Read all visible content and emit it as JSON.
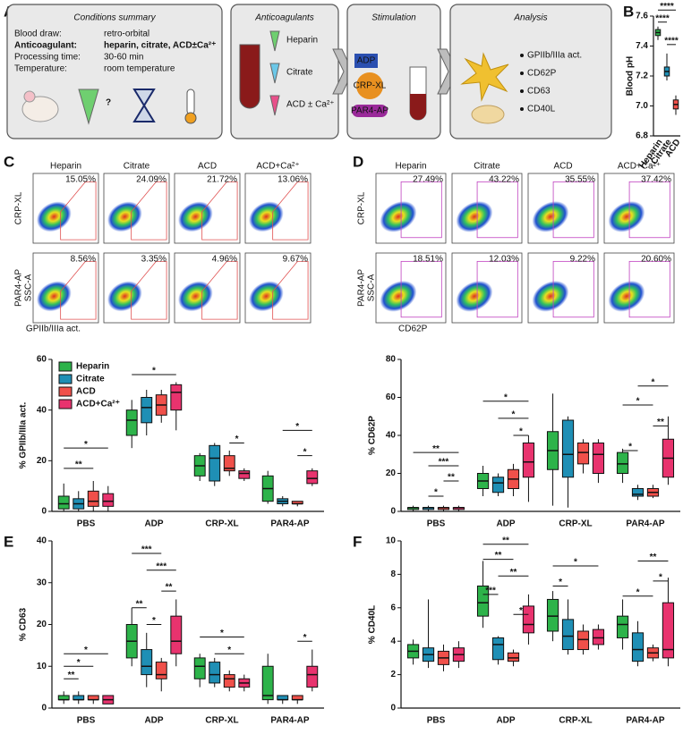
{
  "panel_labels": [
    "A",
    "B",
    "C",
    "D",
    "E",
    "F"
  ],
  "panel_a": {
    "conditions": {
      "title": "Conditions summary",
      "rows": [
        [
          "Blood draw:",
          "retro-orbital"
        ],
        [
          "Anticoagulant:",
          "heparin, citrate, ACD±Ca²⁺"
        ],
        [
          "Processing time:",
          "30-60 min"
        ],
        [
          "Temperature:",
          "room temperature"
        ]
      ]
    },
    "anticoagulants": {
      "title": "Anticoagulants",
      "items": [
        "Heparin",
        "Citrate",
        "ACD ± Ca²⁺"
      ]
    },
    "stimulation": {
      "title": "Stimulation",
      "agonists": [
        "ADP",
        "CRP-XL",
        "PAR4-AP"
      ]
    },
    "analysis": {
      "title": "Analysis",
      "markers": [
        "GPIIb/IIIa act.",
        "CD62P",
        "CD63",
        "CD40L"
      ]
    }
  },
  "flow": [
    {
      "columns": [
        "Heparin",
        "Citrate",
        "ACD",
        "ACD+Ca²⁺"
      ],
      "rows": [
        "CRP-XL",
        "PAR4-AP"
      ],
      "percentages": [
        [
          "15.05%",
          "24.09%",
          "21.72%",
          "13.06%"
        ],
        [
          "8.56%",
          "3.35%",
          "4.96%",
          "9.67%"
        ]
      ],
      "y_axis": "SSC-A",
      "x_axis": "GPIIb/IIIa act."
    },
    {
      "columns": [
        "Heparin",
        "Citrate",
        "ACD",
        "ACD+Ca²⁺"
      ],
      "rows": [
        "CRP-XL",
        "PAR4-AP"
      ],
      "percentages": [
        [
          "27.49%",
          "43.22%",
          "35.55%",
          "37.42%"
        ],
        [
          "18.51%",
          "12.03%",
          "9.22%",
          "20.60%"
        ]
      ],
      "y_axis": "SSC-A",
      "x_axis": "CD62P"
    }
  ],
  "chart_data": [
    {
      "type": "box",
      "y_label": "Blood pH",
      "categories": [
        "Heparin",
        "Citrate",
        "ACD"
      ],
      "colors": [
        "#2db34a",
        "#1f8fb5",
        "#f0504a"
      ],
      "min": [
        7.44,
        7.17,
        6.94
      ],
      "q1": [
        7.47,
        7.2,
        6.98
      ],
      "median": [
        7.49,
        7.23,
        7.01
      ],
      "q3": [
        7.51,
        7.26,
        7.04
      ],
      "max": [
        7.53,
        7.35,
        7.07
      ],
      "ylim": [
        6.8,
        7.6
      ],
      "yticks": [
        6.8,
        {
          "value": 7,
          "label": "7.0"
        },
        7.2,
        7.4,
        7.6
      ],
      "legend": false,
      "annotations": [
        {
          "from": "Citrate",
          "to": "ACD",
          "y": 7.41,
          "label": "****"
        },
        {
          "from": "Heparin",
          "to": "Citrate",
          "y": 7.56,
          "label": "****"
        },
        {
          "from": "Heparin",
          "to": "ACD",
          "y": 7.64,
          "label": "****"
        }
      ]
    },
    {
      "type": "box",
      "y_label": "% GPIIb/IIIa act.",
      "categories": [
        "PBS",
        "ADP",
        "CRP-XL",
        "PAR4-AP"
      ],
      "ylim": [
        0,
        60
      ],
      "yticks": [
        0,
        20,
        40,
        60
      ],
      "legend": true,
      "series": [
        {
          "name": "Heparin",
          "color": "#2db34a",
          "min": [
            0,
            25,
            12,
            3
          ],
          "q1": [
            1,
            30,
            14,
            4
          ],
          "median": [
            3,
            36,
            18,
            9
          ],
          "q3": [
            6,
            40,
            22,
            14
          ],
          "max": [
            11,
            44,
            23,
            16
          ]
        },
        {
          "name": "Citrate",
          "color": "#1f8fb5",
          "min": [
            0,
            30,
            10,
            2
          ],
          "q1": [
            1,
            35,
            12,
            3
          ],
          "median": [
            3,
            41,
            21,
            4
          ],
          "q3": [
            5,
            45,
            26,
            5
          ],
          "max": [
            8,
            48,
            27,
            6
          ]
        },
        {
          "name": "ACD",
          "color": "#f0504a",
          "min": [
            0,
            35,
            14,
            2
          ],
          "q1": [
            2,
            38,
            16,
            3
          ],
          "median": [
            4,
            42,
            17,
            3
          ],
          "q3": [
            8,
            46,
            22,
            4
          ],
          "max": [
            12,
            48,
            24,
            4
          ]
        },
        {
          "name": "ACD+Ca²⁺",
          "color": "#e8336e",
          "min": [
            0,
            32,
            12,
            10
          ],
          "q1": [
            2,
            40,
            13,
            11
          ],
          "median": [
            4,
            47,
            15,
            13
          ],
          "q3": [
            7,
            50,
            16,
            16
          ],
          "max": [
            10,
            51,
            17,
            17
          ]
        }
      ],
      "annotations": [
        {
          "category": "PBS",
          "from": "Heparin",
          "to": "ACD",
          "y": 17,
          "label": "**"
        },
        {
          "category": "PBS",
          "from": "Heparin",
          "to": "ACD+Ca²⁺",
          "y": 25,
          "label": "*"
        },
        {
          "category": "ADP",
          "from": "Heparin",
          "to": "ACD+Ca²⁺",
          "y": 54,
          "label": "*"
        },
        {
          "category": "CRP-XL",
          "from": "ACD",
          "to": "ACD+Ca²⁺",
          "y": 27,
          "label": "*"
        },
        {
          "category": "PAR4-AP",
          "from": "ACD",
          "to": "ACD+Ca²⁺",
          "y": 22,
          "label": "*"
        },
        {
          "category": "PAR4-AP",
          "from": "Citrate",
          "to": "ACD+Ca²⁺",
          "y": 32,
          "label": "*"
        }
      ]
    },
    {
      "type": "box",
      "y_label": "% CD62P",
      "categories": [
        "PBS",
        "ADP",
        "CRP-XL",
        "PAR4-AP"
      ],
      "ylim": [
        0,
        80
      ],
      "yticks": [
        0,
        20,
        40,
        60,
        80
      ],
      "legend": false,
      "series": [
        {
          "name": "Heparin",
          "color": "#2db34a",
          "min": [
            0,
            8,
            3,
            15
          ],
          "q1": [
            1,
            12,
            22,
            20
          ],
          "median": [
            2,
            16,
            32,
            25
          ],
          "q3": [
            2,
            20,
            42,
            31
          ],
          "max": [
            3,
            24,
            62,
            33
          ]
        },
        {
          "name": "Citrate",
          "color": "#1f8fb5",
          "min": [
            0,
            8,
            2,
            6
          ],
          "q1": [
            1,
            10,
            18,
            8
          ],
          "median": [
            2,
            15,
            30,
            9
          ],
          "q3": [
            2,
            18,
            48,
            12
          ],
          "max": [
            3,
            20,
            50,
            14
          ]
        },
        {
          "name": "ACD",
          "color": "#f0504a",
          "min": [
            0,
            8,
            20,
            7
          ],
          "q1": [
            1,
            12,
            25,
            8
          ],
          "median": [
            2,
            17,
            31,
            10
          ],
          "q3": [
            2,
            22,
            36,
            12
          ],
          "max": [
            3,
            25,
            38,
            14
          ]
        },
        {
          "name": "ACD+Ca²⁺",
          "color": "#e8336e",
          "min": [
            0,
            5,
            15,
            14
          ],
          "q1": [
            1,
            18,
            20,
            18
          ],
          "median": [
            2,
            26,
            30,
            28
          ],
          "q3": [
            2,
            36,
            36,
            38
          ],
          "max": [
            3,
            40,
            38,
            50
          ]
        }
      ],
      "annotations": [
        {
          "category": "PBS",
          "from": "Citrate",
          "to": "ACD",
          "y": 8,
          "label": "*"
        },
        {
          "category": "PBS",
          "from": "ACD",
          "to": "ACD+Ca²⁺",
          "y": 16,
          "label": "**"
        },
        {
          "category": "PBS",
          "from": "Citrate",
          "to": "ACD+Ca²⁺",
          "y": 24,
          "label": "***"
        },
        {
          "category": "PBS",
          "from": "Heparin",
          "to": "ACD+Ca²⁺",
          "y": 31,
          "label": "**"
        },
        {
          "category": "ADP",
          "from": "ACD",
          "to": "ACD+Ca²⁺",
          "y": 40,
          "label": "*"
        },
        {
          "category": "ADP",
          "from": "Citrate",
          "to": "ACD+Ca²⁺",
          "y": 49,
          "label": "*"
        },
        {
          "category": "ADP",
          "from": "Heparin",
          "to": "ACD+Ca²⁺",
          "y": 58,
          "label": "*"
        },
        {
          "category": "PAR4-AP",
          "from": "Heparin",
          "to": "Citrate",
          "y": 32,
          "label": "*"
        },
        {
          "category": "PAR4-AP",
          "from": "ACD",
          "to": "ACD+Ca²⁺",
          "y": 45,
          "label": "**"
        },
        {
          "category": "PAR4-AP",
          "from": "Heparin",
          "to": "ACD",
          "y": 56,
          "label": "*"
        },
        {
          "category": "PAR4-AP",
          "from": "Citrate",
          "to": "ACD+Ca²⁺",
          "y": 66,
          "label": "*"
        }
      ]
    },
    {
      "type": "box",
      "y_label": "% CD63",
      "categories": [
        "PBS",
        "ADP",
        "CRP-XL",
        "PAR4-AP"
      ],
      "ylim": [
        0,
        40
      ],
      "yticks": [
        0,
        10,
        20,
        30,
        40
      ],
      "legend": false,
      "series": [
        {
          "name": "Heparin",
          "color": "#2db34a",
          "min": [
            1,
            10,
            5,
            1
          ],
          "q1": [
            2,
            12,
            7,
            2
          ],
          "median": [
            2,
            16,
            10,
            3
          ],
          "q3": [
            3,
            20,
            12,
            10
          ],
          "max": [
            4,
            24,
            13,
            13
          ]
        },
        {
          "name": "Citrate",
          "color": "#1f8fb5",
          "min": [
            1,
            5,
            5,
            1
          ],
          "q1": [
            2,
            8,
            6,
            2
          ],
          "median": [
            2,
            10,
            8,
            2
          ],
          "q3": [
            3,
            14,
            11,
            3
          ],
          "max": [
            4,
            18,
            12,
            3
          ]
        },
        {
          "name": "ACD",
          "color": "#f0504a",
          "min": [
            1,
            4,
            4,
            1
          ],
          "q1": [
            2,
            7,
            5,
            2
          ],
          "median": [
            2,
            8,
            7,
            2
          ],
          "q3": [
            3,
            11,
            8,
            3
          ],
          "max": [
            3,
            12,
            9,
            3
          ]
        },
        {
          "name": "ACD+Ca²⁺",
          "color": "#e8336e",
          "min": [
            1,
            10,
            4,
            4
          ],
          "q1": [
            1,
            13,
            5,
            5
          ],
          "median": [
            2,
            16,
            6,
            8
          ],
          "q3": [
            3,
            22,
            7,
            10
          ],
          "max": [
            3,
            26,
            8,
            14
          ]
        }
      ],
      "annotations": [
        {
          "category": "PBS",
          "from": "Heparin",
          "to": "Citrate",
          "y": 7,
          "label": "**"
        },
        {
          "category": "PBS",
          "from": "Heparin",
          "to": "ACD",
          "y": 10,
          "label": "*"
        },
        {
          "category": "PBS",
          "from": "Heparin",
          "to": "ACD+Ca²⁺",
          "y": 13,
          "label": "*"
        },
        {
          "category": "ADP",
          "from": "Citrate",
          "to": "ACD",
          "y": 20,
          "label": "*"
        },
        {
          "category": "ADP",
          "from": "Heparin",
          "to": "Citrate",
          "y": 24,
          "label": "**"
        },
        {
          "category": "ADP",
          "from": "ACD",
          "to": "ACD+Ca²⁺",
          "y": 28,
          "label": "**"
        },
        {
          "category": "ADP",
          "from": "Citrate",
          "to": "ACD+Ca²⁺",
          "y": 33,
          "label": "***"
        },
        {
          "category": "ADP",
          "from": "Heparin",
          "to": "ACD",
          "y": 37,
          "label": "***"
        },
        {
          "category": "CRP-XL",
          "from": "Citrate",
          "to": "ACD+Ca²⁺",
          "y": 13,
          "label": "*"
        },
        {
          "category": "CRP-XL",
          "from": "Heparin",
          "to": "ACD+Ca²⁺",
          "y": 17,
          "label": "*"
        },
        {
          "category": "PAR4-AP",
          "from": "ACD",
          "to": "ACD+Ca²⁺",
          "y": 16,
          "label": "*"
        }
      ]
    },
    {
      "type": "box",
      "y_label": "% CD40L",
      "categories": [
        "PBS",
        "ADP",
        "CRP-XL",
        "PAR4-AP"
      ],
      "ylim": [
        0,
        10
      ],
      "yticks": [
        0,
        2,
        4,
        6,
        8,
        10
      ],
      "legend": false,
      "series": [
        {
          "name": "Heparin",
          "color": "#2db34a",
          "min": [
            2.6,
            4.8,
            4,
            3.5
          ],
          "q1": [
            3,
            5.5,
            4.6,
            4.2
          ],
          "median": [
            3.4,
            6.3,
            5.5,
            5
          ],
          "q3": [
            3.8,
            7.3,
            6.5,
            5.5
          ],
          "max": [
            4.1,
            8.8,
            7,
            6.5
          ]
        },
        {
          "name": "Citrate",
          "color": "#1f8fb5",
          "min": [
            2.4,
            2.6,
            3.2,
            2.5
          ],
          "q1": [
            2.8,
            2.9,
            3.5,
            2.8
          ],
          "median": [
            3.2,
            3.8,
            4.3,
            3.5
          ],
          "q3": [
            3.6,
            4.2,
            5.3,
            4.5
          ],
          "max": [
            6.5,
            4.3,
            6.5,
            5.2
          ]
        },
        {
          "name": "ACD",
          "color": "#f0504a",
          "min": [
            2.2,
            2.5,
            3.2,
            2.8
          ],
          "q1": [
            2.6,
            2.8,
            3.5,
            3
          ],
          "median": [
            3,
            3,
            4.1,
            3.3
          ],
          "q3": [
            3.4,
            3.3,
            4.6,
            3.6
          ],
          "max": [
            3.8,
            3.5,
            5,
            3.8
          ]
        },
        {
          "name": "ACD+Ca²⁺",
          "color": "#e8336e",
          "min": [
            2.4,
            3.8,
            3.5,
            2.5
          ],
          "q1": [
            2.8,
            4.5,
            3.8,
            3
          ],
          "median": [
            3.2,
            5,
            4.2,
            3.5
          ],
          "q3": [
            3.6,
            6.1,
            4.7,
            6.3
          ],
          "max": [
            4,
            6.8,
            5,
            7.8
          ]
        }
      ],
      "annotations": [
        {
          "category": "ADP",
          "from": "ACD",
          "to": "ACD+Ca²⁺",
          "y": 5.6,
          "label": "*"
        },
        {
          "category": "ADP",
          "from": "Heparin",
          "to": "Citrate",
          "y": 6.8,
          "label": "***"
        },
        {
          "category": "ADP",
          "from": "Citrate",
          "to": "ACD+Ca²⁺",
          "y": 7.9,
          "label": "**"
        },
        {
          "category": "ADP",
          "from": "Heparin",
          "to": "ACD",
          "y": 8.9,
          "label": "**"
        },
        {
          "category": "ADP",
          "from": "Heparin",
          "to": "ACD+Ca²⁺",
          "y": 9.8,
          "label": "**"
        },
        {
          "category": "CRP-XL",
          "from": "Heparin",
          "to": "Citrate",
          "y": 7.3,
          "label": "*"
        },
        {
          "category": "CRP-XL",
          "from": "Heparin",
          "to": "ACD+Ca²⁺",
          "y": 8.5,
          "label": "*"
        },
        {
          "category": "PAR4-AP",
          "from": "Heparin",
          "to": "ACD",
          "y": 6.7,
          "label": "*"
        },
        {
          "category": "PAR4-AP",
          "from": "ACD",
          "to": "ACD+Ca²⁺",
          "y": 7.6,
          "label": "*"
        },
        {
          "category": "PAR4-AP",
          "from": "Citrate",
          "to": "ACD+Ca²⁺",
          "y": 8.8,
          "label": "**"
        }
      ]
    }
  ]
}
